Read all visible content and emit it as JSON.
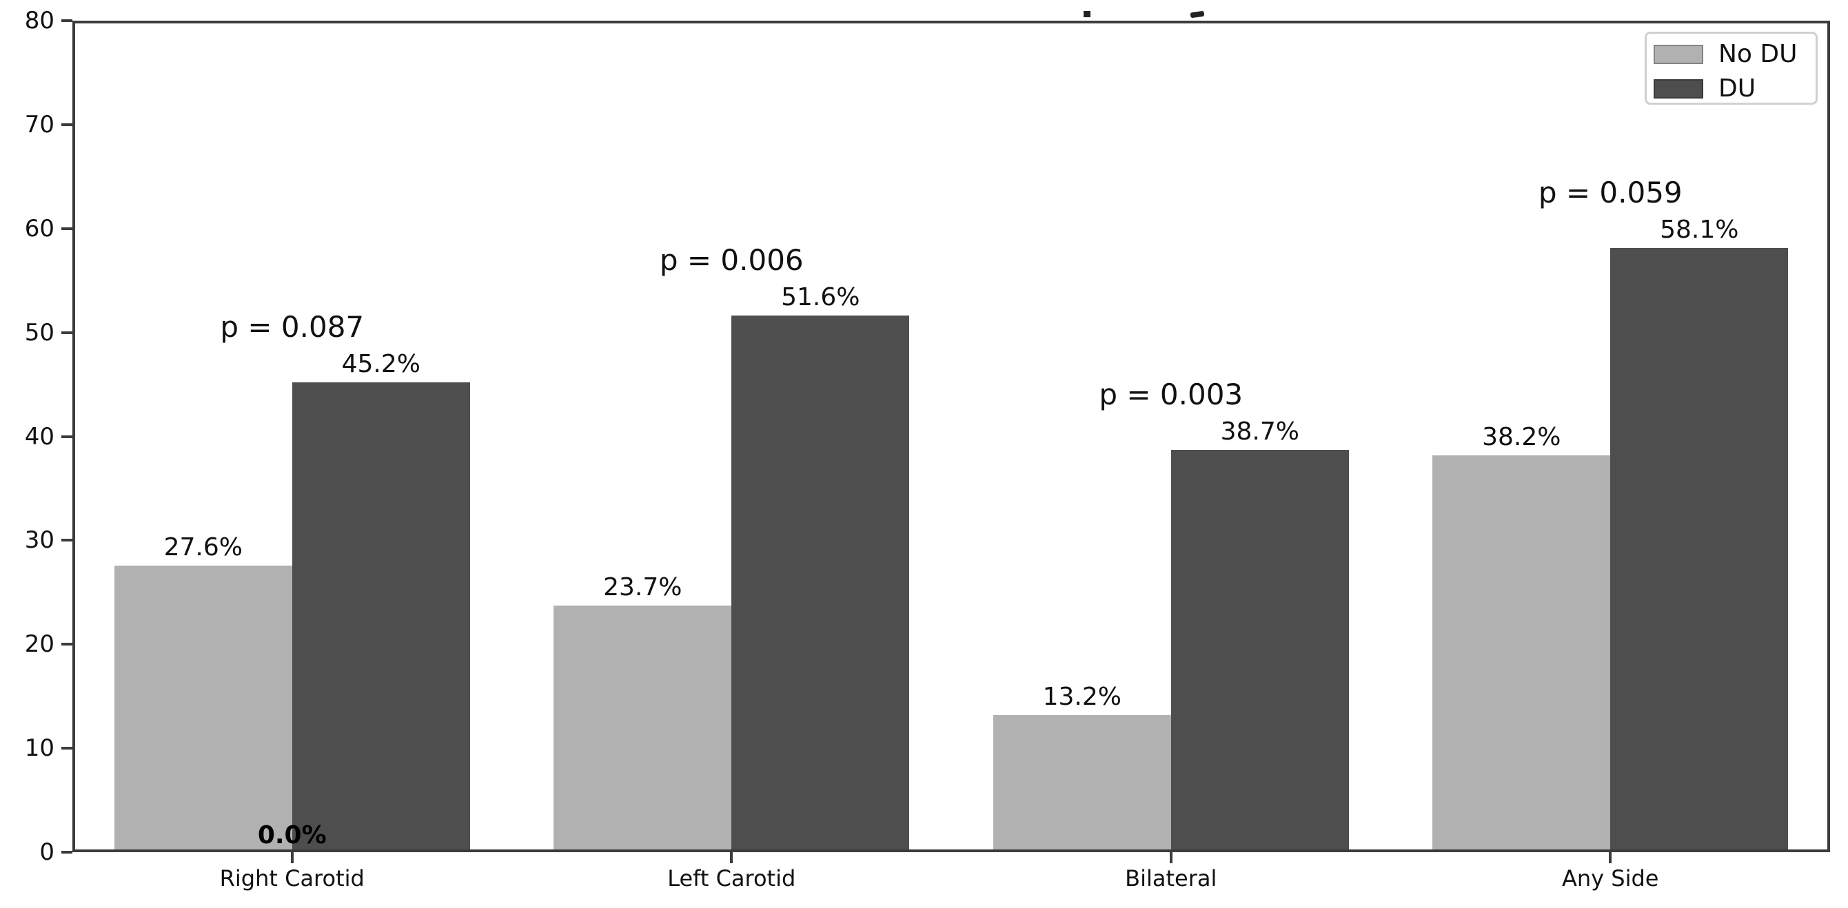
{
  "figure": {
    "background_color": "#ffffff",
    "spine_color": "#3c3c3c",
    "note_clipped_title": "title text is cropped out of frame; only two tiny glyph descender fragments are visible at the top edge",
    "clipped_title_fragments": [
      "dot-fragment",
      "dash-fragment"
    ]
  },
  "chart_data": {
    "type": "bar",
    "categories": [
      "Right Carotid",
      "Left Carotid",
      "Bilateral",
      "Any Side"
    ],
    "series": [
      {
        "name": "No DU",
        "color": "#b1b1b1",
        "values": [
          27.6,
          23.7,
          13.2,
          38.2
        ]
      },
      {
        "name": "DU",
        "color": "#4e4e4e",
        "values": [
          45.2,
          51.6,
          38.7,
          58.1
        ]
      }
    ],
    "bar_label_format": "one_decimal_percent",
    "p_value_labels": [
      "p = 0.087",
      "p = 0.006",
      "p = 0.003",
      "p = 0.059"
    ],
    "extra_annotations": [
      {
        "text": "0.0%",
        "category_index": 0,
        "position": "axis-baseline-center"
      }
    ],
    "title": "",
    "xlabel": "",
    "ylabel": "",
    "ylim": [
      0,
      80
    ],
    "yticks": [
      0,
      10,
      20,
      30,
      40,
      50,
      60,
      70,
      80
    ],
    "grid": false,
    "legend": {
      "position": "upper right",
      "entries": [
        "No DU",
        "DU"
      ]
    }
  }
}
